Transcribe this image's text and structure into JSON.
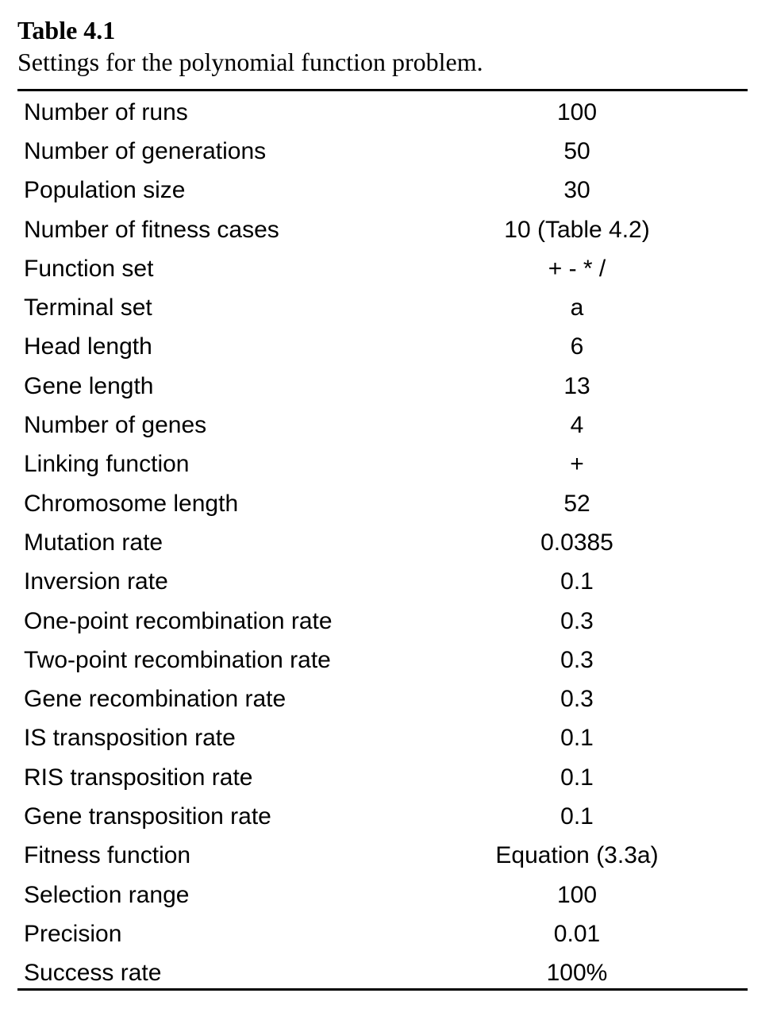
{
  "table": {
    "number": "Table 4.1",
    "caption": "Settings for the polynomial function problem.",
    "rows": [
      {
        "parameter": "Number of runs",
        "value": "100"
      },
      {
        "parameter": "Number of generations",
        "value": "50"
      },
      {
        "parameter": "Population size",
        "value": "30"
      },
      {
        "parameter": "Number of fitness cases",
        "value": "10 (Table 4.2)"
      },
      {
        "parameter": "Function set",
        "value": "+ - * /"
      },
      {
        "parameter": "Terminal set",
        "value": "a"
      },
      {
        "parameter": "Head length",
        "value": "6"
      },
      {
        "parameter": "Gene length",
        "value": "13"
      },
      {
        "parameter": "Number of genes",
        "value": "4"
      },
      {
        "parameter": "Linking function",
        "value": "+"
      },
      {
        "parameter": "Chromosome length",
        "value": "52"
      },
      {
        "parameter": "Mutation rate",
        "value": "0.0385"
      },
      {
        "parameter": "Inversion rate",
        "value": "0.1"
      },
      {
        "parameter": "One-point recombination rate",
        "value": "0.3"
      },
      {
        "parameter": "Two-point recombination rate",
        "value": "0.3"
      },
      {
        "parameter": "Gene recombination rate",
        "value": "0.3"
      },
      {
        "parameter": "IS transposition rate",
        "value": "0.1"
      },
      {
        "parameter": "RIS transposition rate",
        "value": "0.1"
      },
      {
        "parameter": "Gene transposition rate",
        "value": "0.1"
      },
      {
        "parameter": "Fitness function",
        "value": "Equation (3.3a)"
      },
      {
        "parameter": "Selection range",
        "value": "100"
      },
      {
        "parameter": "Precision",
        "value": "0.01"
      },
      {
        "parameter": "Success rate",
        "value": "100%"
      }
    ]
  }
}
